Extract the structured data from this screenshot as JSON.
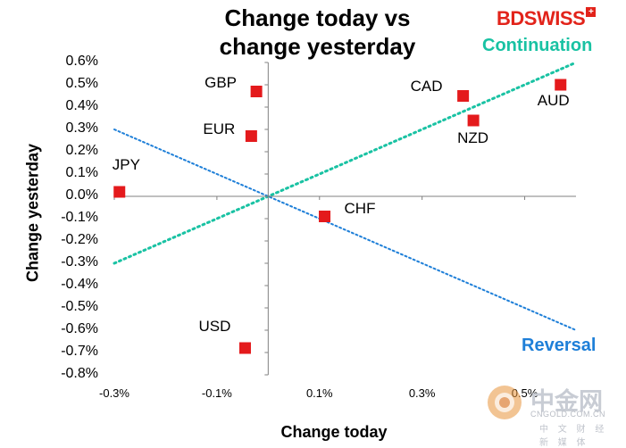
{
  "brand": {
    "logo_text": "BDSWISS",
    "logo_plus": "+",
    "color": "#e2231a"
  },
  "watermark": {
    "name": "中金网",
    "site": "CNGOLD.COM.CN",
    "tagline": "中 文 财 经 新 媒 体"
  },
  "chart_data": {
    "type": "scatter",
    "title": "Change today vs change yesterday",
    "title_lines": [
      "Change today vs",
      "change yesterday"
    ],
    "xlabel": "Change today",
    "ylabel": "Change yesterday",
    "xlim": [
      -0.3,
      0.6
    ],
    "ylim": [
      -0.8,
      0.6
    ],
    "x_ticks": [
      -0.3,
      -0.1,
      0.1,
      0.3,
      0.5
    ],
    "x_tick_labels": [
      "-0.3%",
      "-0.1%",
      "0.1%",
      "0.3%",
      "0.5%"
    ],
    "y_ticks": [
      0.6,
      0.5,
      0.4,
      0.3,
      0.2,
      0.1,
      0.0,
      -0.1,
      -0.2,
      -0.3,
      -0.4,
      -0.5,
      -0.6,
      -0.7,
      -0.8
    ],
    "y_tick_labels": [
      "0.6%",
      "0.5%",
      "0.4%",
      "0.3%",
      "0.2%",
      "0.1%",
      "0.0%",
      "-0.1%",
      "-0.2%",
      "-0.3%",
      "-0.4%",
      "-0.5%",
      "-0.6%",
      "-0.7%",
      "-0.8%"
    ],
    "marker_color": "#e41a1c",
    "points": [
      {
        "label": "GBP",
        "x": -0.023,
        "y": 0.47
      },
      {
        "label": "EUR",
        "x": -0.033,
        "y": 0.27
      },
      {
        "label": "JPY",
        "x": -0.29,
        "y": 0.02
      },
      {
        "label": "USD",
        "x": -0.045,
        "y": -0.68
      },
      {
        "label": "CAD",
        "x": 0.38,
        "y": 0.45
      },
      {
        "label": "NZD",
        "x": 0.4,
        "y": 0.34
      },
      {
        "label": "AUD",
        "x": 0.57,
        "y": 0.5
      },
      {
        "label": "CHF",
        "x": 0.11,
        "y": -0.09
      }
    ],
    "lines": [
      {
        "name": "Continuation",
        "x": [
          -0.3,
          0.6
        ],
        "y": [
          -0.3,
          0.6
        ],
        "color": "#19c2a3",
        "style": "dotted"
      },
      {
        "name": "Reversal",
        "x": [
          -0.3,
          0.6
        ],
        "y": [
          0.3,
          -0.6
        ],
        "color": "#1e7fd8",
        "style": "dotted"
      }
    ],
    "grid": false
  }
}
